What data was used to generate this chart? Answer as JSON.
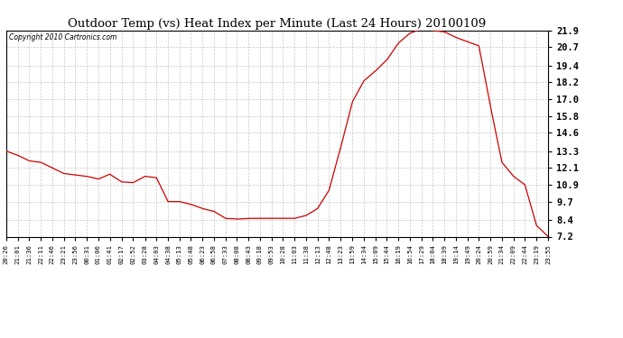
{
  "title": "Outdoor Temp (vs) Heat Index per Minute (Last 24 Hours) 20100109",
  "copyright_text": "Copyright 2010 Cartronics.com",
  "line_color": "#cc0000",
  "background_color": "#ffffff",
  "grid_color": "#c8c8c8",
  "ylim": [
    7.2,
    21.9
  ],
  "yticks": [
    7.2,
    8.4,
    9.7,
    10.9,
    12.1,
    13.3,
    14.6,
    15.8,
    17.0,
    18.2,
    19.4,
    20.7,
    21.9
  ],
  "xtick_labels": [
    "20:26",
    "21:01",
    "21:36",
    "22:11",
    "22:46",
    "23:21",
    "23:56",
    "00:31",
    "01:06",
    "01:41",
    "02:17",
    "02:52",
    "03:28",
    "04:03",
    "04:38",
    "05:13",
    "05:48",
    "06:23",
    "06:58",
    "07:33",
    "08:08",
    "08:43",
    "09:18",
    "09:53",
    "10:28",
    "11:03",
    "11:38",
    "12:13",
    "12:48",
    "13:23",
    "13:59",
    "14:34",
    "15:09",
    "15:44",
    "16:19",
    "16:54",
    "17:29",
    "18:04",
    "18:39",
    "19:14",
    "19:49",
    "20:24",
    "20:59",
    "21:34",
    "22:09",
    "22:44",
    "23:19",
    "23:55"
  ],
  "x_values": [
    0,
    35,
    70,
    105,
    140,
    175,
    210,
    245,
    280,
    315,
    351,
    386,
    422,
    457,
    492,
    527,
    562,
    597,
    632,
    667,
    702,
    737,
    772,
    807,
    842,
    877,
    912,
    947,
    982,
    1017,
    1053,
    1088,
    1123,
    1158,
    1193,
    1228,
    1263,
    1298,
    1333,
    1368,
    1403,
    1438,
    1473,
    1508,
    1543,
    1578,
    1613,
    1649
  ],
  "y_values": [
    13.3,
    13.0,
    12.6,
    12.5,
    12.1,
    11.7,
    11.6,
    11.5,
    11.3,
    11.65,
    11.1,
    11.05,
    11.5,
    11.4,
    9.7,
    9.7,
    9.5,
    9.2,
    9.0,
    8.5,
    8.45,
    8.5,
    8.5,
    8.5,
    8.5,
    8.5,
    8.7,
    9.2,
    10.5,
    13.5,
    16.8,
    18.3,
    19.0,
    19.8,
    21.0,
    21.7,
    22.0,
    21.9,
    21.8,
    21.4,
    21.1,
    20.8,
    16.5,
    12.5,
    11.5,
    10.9,
    8.0,
    7.2
  ]
}
